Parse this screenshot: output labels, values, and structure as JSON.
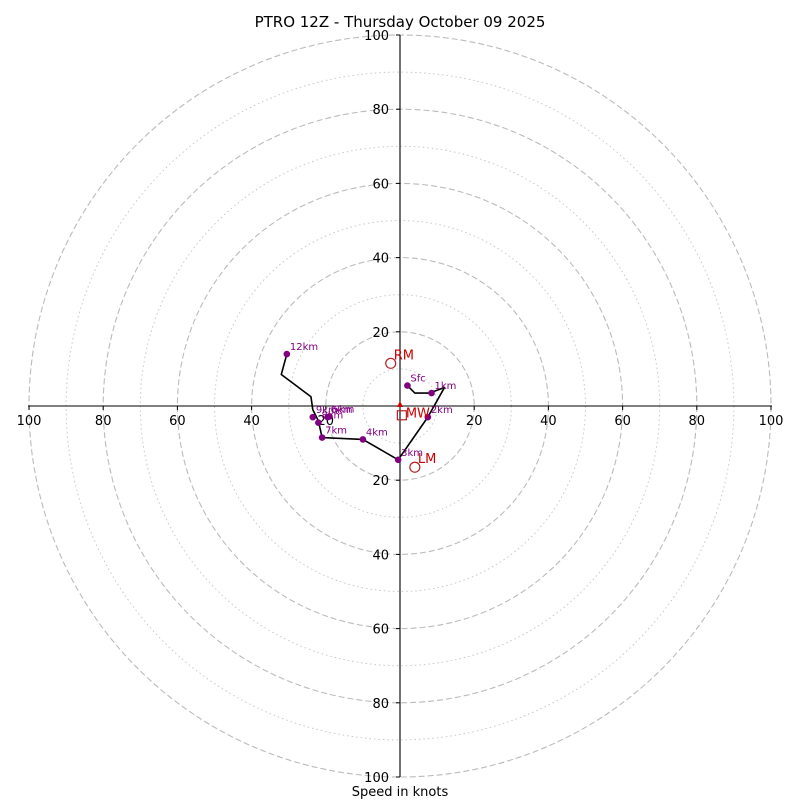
{
  "chart_data": {
    "type": "hodograph",
    "title": "PTRO 12Z - Thursday October 09 2025",
    "xlabel": "Speed in knots",
    "axis_max_knots": 100,
    "major_rings_knots": [
      20,
      40,
      60,
      80,
      100
    ],
    "minor_rings_knots": [
      10,
      30,
      50,
      70,
      90
    ],
    "x_tick_labels": [
      "100",
      "80",
      "60",
      "40",
      "20",
      "20",
      "40",
      "60",
      "80",
      "100"
    ],
    "x_tick_values": [
      -100,
      -80,
      -60,
      -40,
      -20,
      20,
      40,
      60,
      80,
      100
    ],
    "y_tick_labels": [
      "100",
      "80",
      "60",
      "40",
      "20",
      "20",
      "40",
      "60",
      "80",
      "100"
    ],
    "y_tick_values": [
      100,
      80,
      60,
      40,
      20,
      -20,
      -40,
      -60,
      -80,
      -100
    ],
    "trace_color": "#000000",
    "marker_color": "#800080",
    "motion_color": "#cc0000",
    "hodograph_trace": [
      [
        2,
        5.5
      ],
      [
        4,
        3.5
      ],
      [
        8,
        3.5
      ],
      [
        12,
        5
      ],
      [
        7.5,
        -3
      ],
      [
        -0.5,
        -14.5
      ],
      [
        -10,
        -9
      ],
      [
        -21,
        -8.5
      ],
      [
        -22,
        -4
      ],
      [
        -23.5,
        -1
      ],
      [
        -24,
        2.5
      ],
      [
        -32,
        8.5
      ],
      [
        -30.5,
        14
      ]
    ],
    "height_labels": [
      {
        "label": "Sfc",
        "u": 2,
        "v": 5.5
      },
      {
        "label": "1km",
        "u": 8.5,
        "v": 3.5
      },
      {
        "label": "2km",
        "u": 7.5,
        "v": -3
      },
      {
        "label": "3km",
        "u": -0.5,
        "v": -14.5
      },
      {
        "label": "4km",
        "u": -10,
        "v": -9
      },
      {
        "label": "5km",
        "u": -19,
        "v": -2.8
      },
      {
        "label": "6km",
        "u": -19.5,
        "v": -3
      },
      {
        "label": "7km",
        "u": -21,
        "v": -8.5
      },
      {
        "label": "8km",
        "u": -22,
        "v": -4.5
      },
      {
        "label": "9km",
        "u": -23.5,
        "v": -3
      },
      {
        "label": "12km",
        "u": -30.5,
        "v": 14
      }
    ],
    "storm_motions": [
      {
        "label": "RM",
        "u": -2.5,
        "v": 11.5,
        "marker": "circle"
      },
      {
        "label": "LM",
        "u": 4,
        "v": -16.5,
        "marker": "circle"
      },
      {
        "label": "MW",
        "u": 0.5,
        "v": -2.5,
        "marker": "square"
      }
    ]
  }
}
